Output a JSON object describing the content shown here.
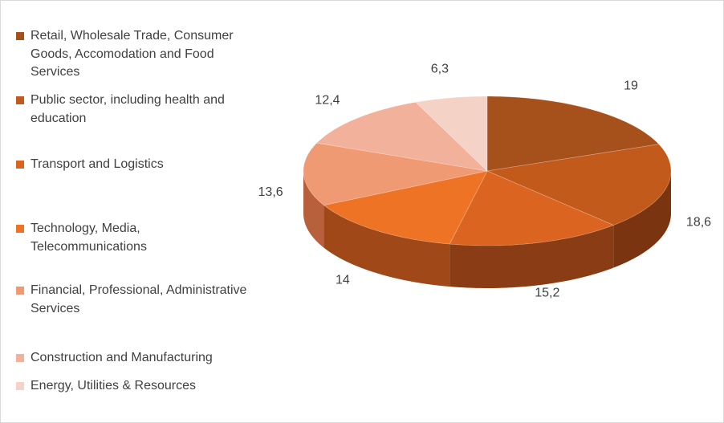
{
  "chart_data": {
    "type": "pie",
    "style": "3d",
    "title": "",
    "legend_position": "left",
    "categories": [
      "Retail, Wholesale Trade, Consumer Goods, Accomodation and Food Services",
      "Public sector, including health and education",
      "Transport and Logistics",
      "Technology, Media, Telecommunications",
      "Financial, Professional, Administrative Services",
      "Construction and Manufacturing",
      "Energy, Utilities & Resources"
    ],
    "values": [
      19,
      18.6,
      15.2,
      14,
      13.6,
      12.4,
      6.3
    ],
    "data_labels": [
      "19",
      "18,6",
      "15,2",
      "14",
      "13,6",
      "12,4",
      "6,3"
    ],
    "colors": [
      "#a6501c",
      "#c25a1c",
      "#db6520",
      "#ee7324",
      "#f09a74",
      "#f2b19a",
      "#f5d2c6"
    ],
    "side_colors": [
      "#6e3010",
      "#7a3410",
      "#8a3c14",
      "#a04818",
      "#b8603c",
      "#c07a62",
      "#c69a8e"
    ]
  }
}
